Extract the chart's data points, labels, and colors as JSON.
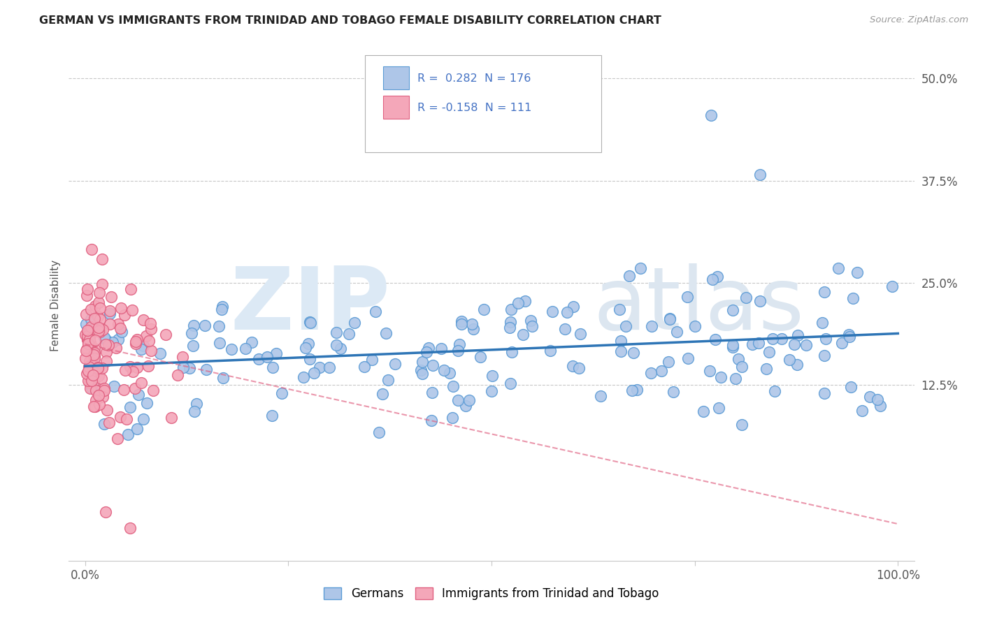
{
  "title": "GERMAN VS IMMIGRANTS FROM TRINIDAD AND TOBAGO FEMALE DISABILITY CORRELATION CHART",
  "source": "Source: ZipAtlas.com",
  "ylabel": "Female Disability",
  "xlim": [
    -0.02,
    1.02
  ],
  "ylim": [
    -0.09,
    0.535
  ],
  "yticks": [
    0.125,
    0.25,
    0.375,
    0.5
  ],
  "ytick_labels": [
    "12.5%",
    "25.0%",
    "37.5%",
    "50.0%"
  ],
  "blue_color": "#aec6e8",
  "pink_color": "#f4a7b9",
  "blue_edge_color": "#5b9bd5",
  "pink_edge_color": "#e06080",
  "blue_line_color": "#2e75b6",
  "pink_line_color": "#e06080",
  "text_color": "#4472c4",
  "axis_color": "#555555",
  "grid_color": "#c8c8c8",
  "watermark_color1": "#dce9f5",
  "watermark_color2": "#dce6f0",
  "background_color": "#ffffff",
  "seed": 7,
  "blue_n": 176,
  "pink_n": 111,
  "blue_R": 0.282,
  "pink_R": -0.158,
  "blue_intercept": 0.148,
  "blue_slope": 0.04,
  "pink_intercept": 0.175,
  "pink_slope": -0.22
}
